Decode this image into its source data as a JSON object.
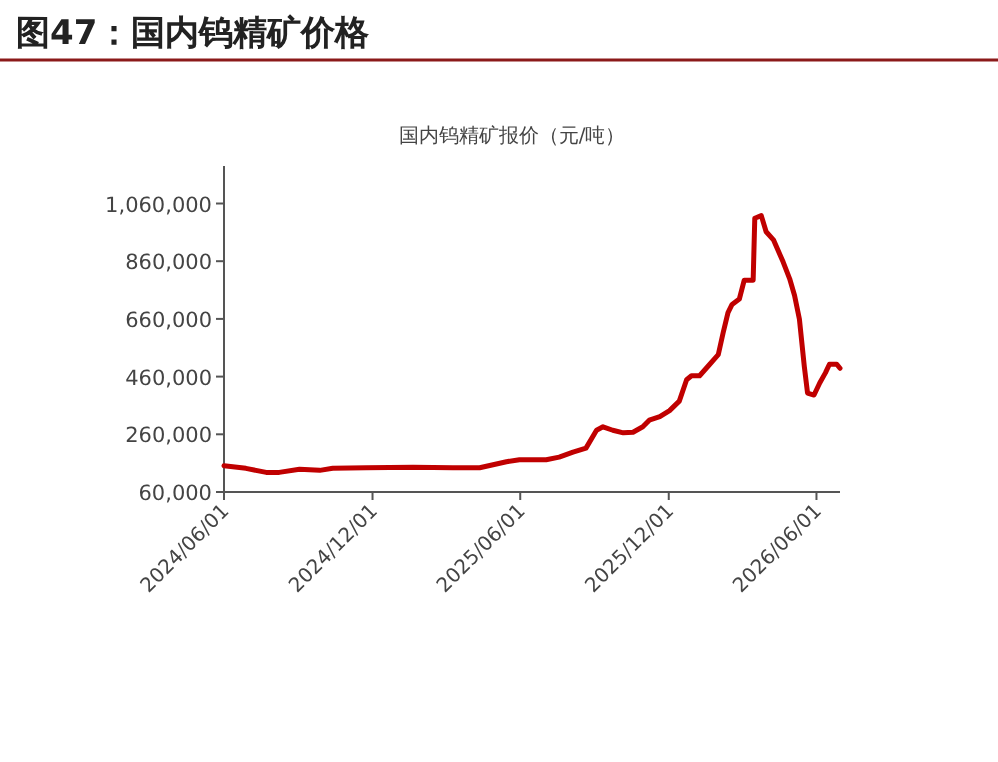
{
  "chart_data": {
    "type": "line",
    "title": "图47：国内钨精矿价格",
    "subtitle": "国内钨精矿报价（元/吨）",
    "x": [
      "2024-06-01",
      "2024-06-28",
      "2024-07-23",
      "2024-08-08",
      "2024-09-02",
      "2024-09-27",
      "2024-10-13",
      "2024-11-23",
      "2025-01-20",
      "2025-03-10",
      "2025-04-12",
      "2025-05-15",
      "2025-05-31",
      "2025-07-03",
      "2025-07-19",
      "2025-08-05",
      "2025-08-21",
      "2025-09-03",
      "2025-09-11",
      "2025-09-23",
      "2025-10-06",
      "2025-10-18",
      "2025-10-30",
      "2025-11-07",
      "2025-11-20",
      "2025-12-02",
      "2025-12-14",
      "2025-12-23",
      "2025-12-29",
      "2026-01-08",
      "2026-01-20",
      "2026-01-31",
      "2026-02-06",
      "2026-02-12",
      "2026-02-17",
      "2026-02-26",
      "2026-03-04",
      "2026-03-15",
      "2026-03-17",
      "2026-03-25",
      "2026-03-31",
      "2026-04-09",
      "2026-04-21",
      "2026-04-29",
      "2026-05-05",
      "2026-05-11",
      "2026-05-17",
      "2026-05-21",
      "2026-05-29",
      "2026-06-05",
      "2026-06-12",
      "2026-06-17",
      "2026-06-26",
      "2026-06-30"
    ],
    "series": [
      {
        "color": "#c00000",
        "values": [
          151000,
          142000,
          128000,
          128000,
          139000,
          135000,
          142000,
          144000,
          146000,
          144000,
          144000,
          165000,
          172000,
          172000,
          181000,
          198000,
          212000,
          274000,
          286000,
          274000,
          265000,
          267000,
          286000,
          309000,
          321000,
          342000,
          375000,
          449000,
          463000,
          463000,
          501000,
          536000,
          612000,
          682000,
          710000,
          729000,
          794000,
          794000,
          1009000,
          1018000,
          962000,
          934000,
          857000,
          799000,
          741000,
          659000,
          496000,
          403000,
          396000,
          438000,
          473000,
          503000,
          503000,
          489000
        ]
      }
    ],
    "xlim": [
      "2024-06-01",
      "2026-06-30"
    ],
    "xticks": [
      {
        "value": "2024-06-01",
        "label": "2024/06/01"
      },
      {
        "value": "2024-12-01",
        "label": "2024/12/01"
      },
      {
        "value": "2025-06-01",
        "label": "2025/06/01"
      },
      {
        "value": "2025-12-01",
        "label": "2025/12/01"
      },
      {
        "value": "2026-06-01",
        "label": "2026/06/01"
      }
    ],
    "ylim": [
      60000,
      1190000
    ],
    "yticks": [
      {
        "value": 60000,
        "label": "60,000"
      },
      {
        "value": 260000,
        "label": "260,000"
      },
      {
        "value": 460000,
        "label": "460,000"
      },
      {
        "value": 660000,
        "label": "660,000"
      },
      {
        "value": 860000,
        "label": "860,000"
      },
      {
        "value": 1060000,
        "label": "1,060,000"
      }
    ]
  }
}
